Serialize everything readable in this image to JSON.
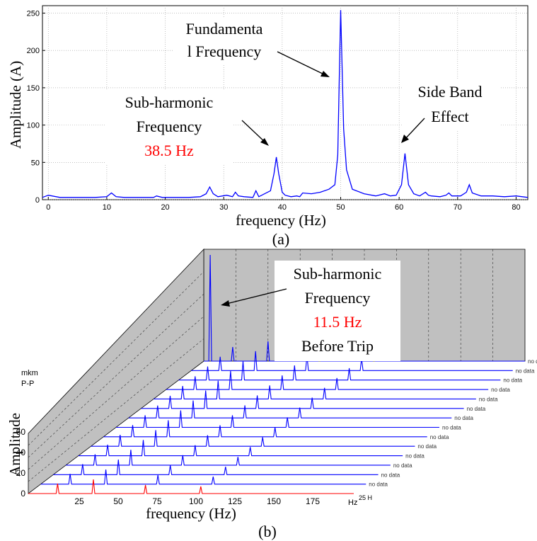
{
  "chart_data": [
    {
      "type": "line",
      "panel": "(a)",
      "title": "",
      "xlabel": "frequency (Hz)",
      "ylabel": "Amplitude (A)",
      "xlim": [
        -1,
        82
      ],
      "ylim": [
        0,
        260
      ],
      "xticks": [
        0,
        10,
        20,
        30,
        40,
        50,
        60,
        70,
        80
      ],
      "yticks": [
        0,
        50,
        100,
        150,
        200,
        250
      ],
      "grid": true,
      "line_color": "#0000ff",
      "series": [
        {
          "x": [
            -1,
            0,
            2,
            5,
            8,
            10,
            10.8,
            11.6,
            13,
            16,
            18,
            18.5,
            19.5,
            22,
            24,
            26,
            27,
            27.6,
            28.2,
            29,
            30.5,
            31.5,
            32,
            32.5,
            33.5,
            35,
            35.5,
            36,
            37,
            38,
            38.6,
            39,
            39.4,
            40,
            40.5,
            41.5,
            42.5,
            43,
            43.5,
            45,
            46.5,
            48,
            49,
            49.5,
            49.8,
            50,
            50.2,
            50.5,
            51,
            52,
            54,
            56,
            57.5,
            58.5,
            59.5,
            60.4,
            61,
            61.6,
            62.5,
            63.5,
            64.5,
            65,
            65.5,
            67,
            68,
            68.5,
            69,
            70.5,
            71.5,
            72,
            72.5,
            74,
            76,
            78,
            80,
            82
          ],
          "y": [
            3,
            6,
            3,
            3,
            3,
            4,
            9,
            4,
            3,
            3,
            3,
            5,
            3,
            3,
            3,
            4,
            8,
            17,
            8,
            4,
            6,
            4,
            10,
            5,
            4,
            3,
            12,
            4,
            8,
            12,
            35,
            57,
            35,
            10,
            6,
            4,
            5,
            4,
            9,
            8,
            10,
            14,
            20,
            60,
            180,
            254,
            190,
            95,
            40,
            14,
            8,
            5,
            8,
            5,
            6,
            20,
            62,
            20,
            8,
            5,
            10,
            6,
            5,
            4,
            6,
            9,
            5,
            5,
            10,
            20,
            9,
            5,
            5,
            4,
            5,
            3
          ]
        }
      ],
      "annotations": [
        {
          "lines": [
            "Fundamenta",
            "l Frequency"
          ]
        },
        {
          "lines": [
            "Sub-harmonic",
            "Frequency"
          ],
          "value_text": "38.5 Hz",
          "value_color": "#ff0000"
        },
        {
          "lines": [
            "Side Band",
            "Effect"
          ]
        }
      ],
      "caption": "(a)"
    },
    {
      "type": "line",
      "panel": "(b)",
      "title": "",
      "xlabel": "frequency (Hz)",
      "ylabel": "Amplitude",
      "ylabel_inset": [
        "mkm",
        "P-P"
      ],
      "xticks": [
        25,
        50,
        75,
        100,
        125,
        150,
        175
      ],
      "x_unit_label": "Hz",
      "yticks": [
        0,
        20,
        40,
        60
      ],
      "depth_label_front": "25 H",
      "depth_label_back": "no data",
      "depth_traces": 15,
      "front_trace_color": "#ff0000",
      "trace_color": "#0000ff",
      "annotation": {
        "lines": [
          "Sub-harmonic",
          "Frequency"
        ],
        "value_text": "11.5 Hz",
        "value_color": "#ff0000",
        "extra_line": "Before Trip"
      },
      "caption": "(b)"
    }
  ]
}
